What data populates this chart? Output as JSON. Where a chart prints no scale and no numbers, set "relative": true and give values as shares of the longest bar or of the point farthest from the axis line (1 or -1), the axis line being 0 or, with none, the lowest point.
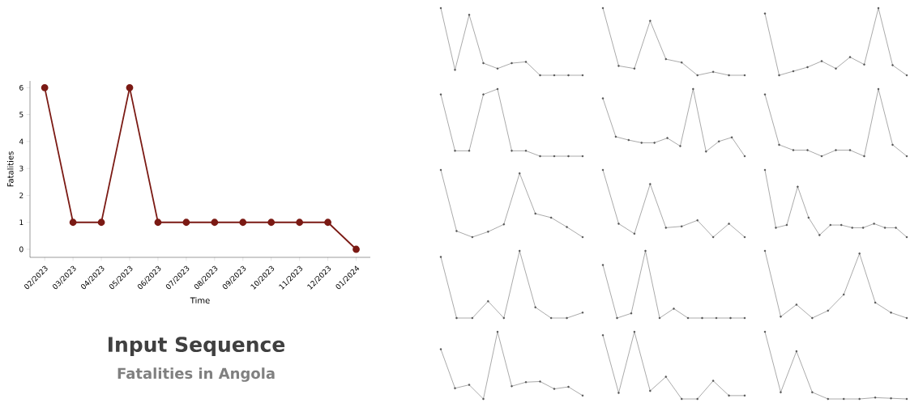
{
  "chart_data": [
    {
      "type": "line",
      "title": "Input Sequence",
      "subtitle": "Fatalities in Angola",
      "xlabel": "Time",
      "ylabel": "Fatalities",
      "categories": [
        "02/2023",
        "03/2023",
        "04/2023",
        "05/2023",
        "06/2023",
        "07/2023",
        "08/2023",
        "09/2023",
        "10/2023",
        "11/2023",
        "12/2023",
        "01/2024"
      ],
      "values": [
        6,
        1,
        1,
        6,
        1,
        1,
        1,
        1,
        1,
        1,
        1,
        0
      ],
      "color": "#7b1a14",
      "marker": "circle",
      "line_style": "solid",
      "ylim": [
        -0.3,
        6.25
      ],
      "yticks": [
        0,
        1,
        2,
        3,
        4,
        5,
        6
      ]
    },
    {
      "type": "line",
      "relative": true,
      "color": "#555555",
      "marker": "circle",
      "categories": [
        null,
        null,
        null,
        null,
        null,
        null,
        null,
        null,
        null,
        null,
        null
      ],
      "values": [
        1,
        0.08,
        0.9,
        0.18,
        0.1,
        0.18,
        0.2,
        0,
        0,
        0,
        0
      ]
    },
    {
      "type": "line",
      "relative": true,
      "color": "#555555",
      "marker": "circle",
      "categories": [
        null,
        null,
        null,
        null,
        null,
        null,
        null,
        null,
        null,
        null
      ],
      "values": [
        1,
        0.14,
        0.1,
        0.81,
        0.24,
        0.19,
        0,
        0.05,
        0,
        0
      ]
    },
    {
      "type": "line",
      "relative": true,
      "color": "#555555",
      "marker": "circle",
      "categories": [
        null,
        null,
        null,
        null,
        null,
        null,
        null,
        null,
        null,
        null,
        null
      ],
      "values": [
        0.92,
        0,
        0.06,
        0.12,
        0.21,
        0.1,
        0.27,
        0.16,
        1,
        0.15,
        0
      ]
    },
    {
      "type": "line",
      "relative": true,
      "color": "#555555",
      "marker": "circle",
      "categories": [
        null,
        null,
        null,
        null,
        null,
        null,
        null,
        null,
        null,
        null,
        null
      ],
      "values": [
        0.92,
        0.08,
        0.08,
        0.92,
        1,
        0.08,
        0.08,
        0,
        0,
        0,
        0
      ]
    },
    {
      "type": "line",
      "relative": true,
      "color": "#555555",
      "marker": "circle",
      "categories": [
        null,
        null,
        null,
        null,
        null,
        null,
        null,
        null,
        null,
        null,
        null,
        null
      ],
      "values": [
        0.86,
        0.29,
        0.24,
        0.2,
        0.2,
        0.27,
        0.15,
        1,
        0.07,
        0.22,
        0.28,
        0
      ]
    },
    {
      "type": "line",
      "relative": true,
      "color": "#555555",
      "marker": "circle",
      "categories": [
        null,
        null,
        null,
        null,
        null,
        null,
        null,
        null,
        null,
        null,
        null
      ],
      "values": [
        0.92,
        0.17,
        0.09,
        0.09,
        0,
        0.09,
        0.09,
        0,
        1,
        0.17,
        0
      ]
    },
    {
      "type": "line",
      "relative": true,
      "color": "#555555",
      "marker": "circle",
      "categories": [
        null,
        null,
        null,
        null,
        null,
        null,
        null,
        null,
        null,
        null
      ],
      "values": [
        1,
        0.09,
        0,
        0.08,
        0.19,
        0.95,
        0.35,
        0.29,
        0.15,
        0
      ]
    },
    {
      "type": "line",
      "relative": true,
      "color": "#555555",
      "marker": "circle",
      "categories": [
        null,
        null,
        null,
        null,
        null,
        null,
        null,
        null,
        null,
        null
      ],
      "values": [
        1,
        0.2,
        0.05,
        0.79,
        0.14,
        0.16,
        0.25,
        0,
        0.2,
        0
      ]
    },
    {
      "type": "line",
      "relative": true,
      "color": "#555555",
      "marker": "circle",
      "categories": [
        null,
        null,
        null,
        null,
        null,
        null,
        null,
        null,
        null,
        null,
        null,
        null,
        null,
        null
      ],
      "values": [
        1,
        0.14,
        0.18,
        0.75,
        0.29,
        0.03,
        0.18,
        0.18,
        0.14,
        0.14,
        0.2,
        0.14,
        0.14,
        0
      ]
    },
    {
      "type": "line",
      "relative": true,
      "color": "#555555",
      "marker": "circle",
      "categories": [
        null,
        null,
        null,
        null,
        null,
        null,
        null,
        null,
        null,
        null
      ],
      "values": [
        0.91,
        0,
        0,
        0.25,
        0,
        1,
        0.16,
        0,
        0,
        0.08
      ]
    },
    {
      "type": "line",
      "relative": true,
      "color": "#555555",
      "marker": "circle",
      "categories": [
        null,
        null,
        null,
        null,
        null,
        null,
        null,
        null,
        null,
        null,
        null
      ],
      "values": [
        0.79,
        0,
        0.07,
        1,
        0,
        0.14,
        0,
        0,
        0,
        0,
        0
      ]
    },
    {
      "type": "line",
      "relative": true,
      "color": "#555555",
      "marker": "circle",
      "categories": [
        null,
        null,
        null,
        null,
        null,
        null,
        null,
        null,
        null,
        null
      ],
      "values": [
        1,
        0.02,
        0.2,
        0,
        0.11,
        0.35,
        0.96,
        0.23,
        0.08,
        0
      ]
    },
    {
      "type": "line",
      "relative": true,
      "color": "#555555",
      "marker": "circle",
      "categories": [
        null,
        null,
        null,
        null,
        null,
        null,
        null,
        null,
        null,
        null,
        null
      ],
      "values": [
        0.74,
        0.16,
        0.21,
        0,
        1,
        0.19,
        0.25,
        0.26,
        0.15,
        0.18,
        0.05
      ]
    },
    {
      "type": "line",
      "relative": true,
      "color": "#555555",
      "marker": "circle",
      "categories": [
        null,
        null,
        null,
        null,
        null,
        null,
        null,
        null,
        null,
        null
      ],
      "values": [
        0.95,
        0.09,
        1,
        0.12,
        0.33,
        0,
        0,
        0.27,
        0.05,
        0.05
      ]
    },
    {
      "type": "line",
      "relative": true,
      "color": "#555555",
      "marker": "circle",
      "categories": [
        null,
        null,
        null,
        null,
        null,
        null,
        null,
        null,
        null,
        null
      ],
      "values": [
        1,
        0.1,
        0.71,
        0.1,
        0,
        0,
        0,
        0.02,
        0.01,
        0
      ]
    }
  ]
}
